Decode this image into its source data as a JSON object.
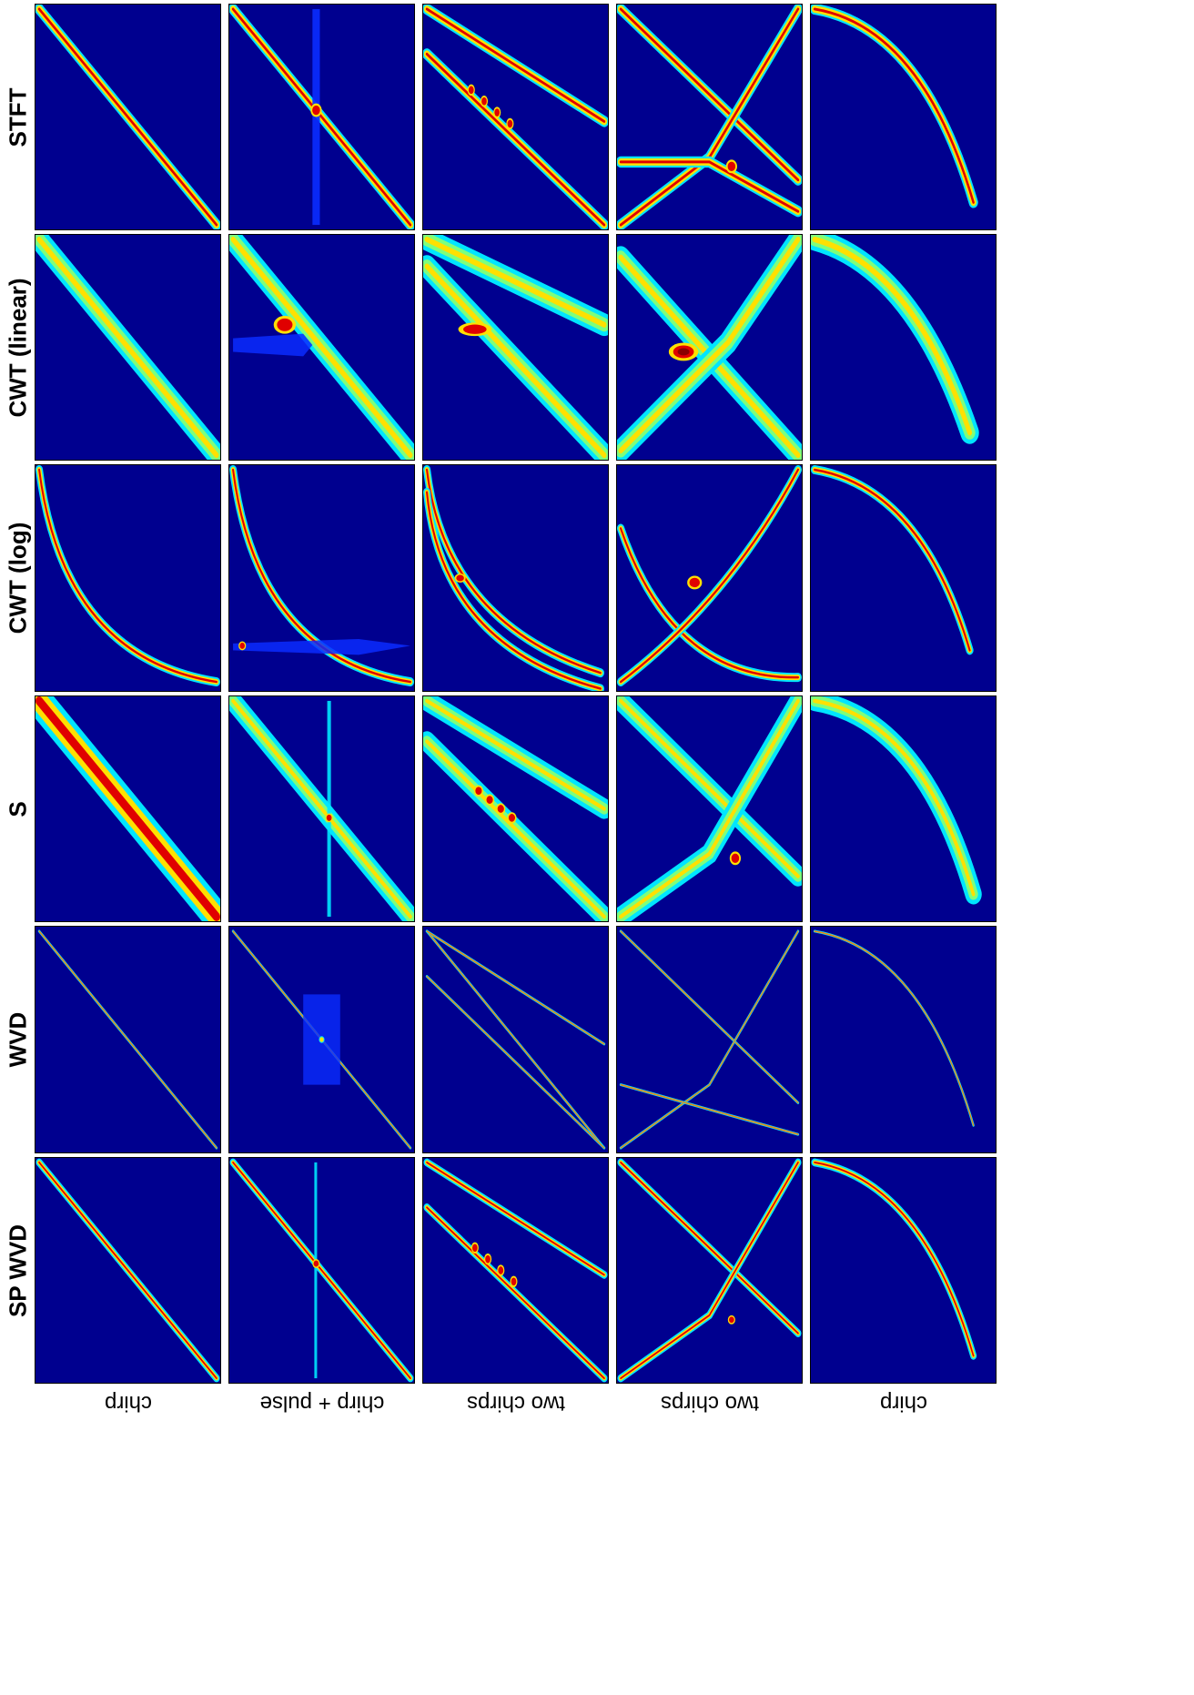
{
  "methods": [
    "STFT",
    "CWT (linear)",
    "CWT (log)",
    "S",
    "WVD",
    "SP WVD"
  ],
  "signals": [
    "chirp",
    "chirp + pulse",
    "two chirps",
    "two chirps",
    "chirp"
  ],
  "colormap": {
    "name": "jet",
    "stops": [
      "#00008f",
      "#0000ff",
      "#00ffff",
      "#ffff00",
      "#ff0000",
      "#800000"
    ]
  }
}
